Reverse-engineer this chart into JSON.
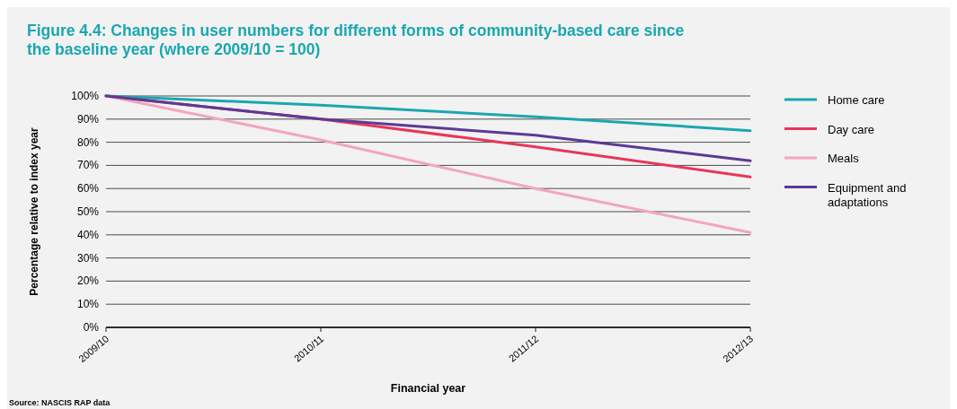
{
  "chart_data": {
    "type": "line",
    "title": "Figure 4.4: Changes in user numbers for different forms of community-based care since the baseline year (where 2009/10 = 100)",
    "xlabel": "Financial year",
    "ylabel": "Percentage relative to index year",
    "categories": [
      "2009/10",
      "2010/11",
      "2011/12",
      "2012/13"
    ],
    "series": [
      {
        "name": "Home care",
        "color": "#1aa7b0",
        "values": [
          100,
          96,
          91,
          85
        ]
      },
      {
        "name": "Day care",
        "color": "#e8365a",
        "values": [
          100,
          90,
          78,
          65
        ]
      },
      {
        "name": "Meals",
        "color": "#f4a6b9",
        "values": [
          100,
          81,
          60,
          41
        ]
      },
      {
        "name": "Equipment and adaptations",
        "color": "#5b3a96",
        "values": [
          100,
          90,
          83,
          72
        ]
      }
    ],
    "ylim": [
      0,
      100
    ],
    "yticks": [
      {
        "value": 0,
        "label": "0%"
      },
      {
        "value": 10,
        "label": "10%"
      },
      {
        "value": 20,
        "label": "20%"
      },
      {
        "value": 30,
        "label": "30%"
      },
      {
        "value": 40,
        "label": "40%"
      },
      {
        "value": 50,
        "label": "50%"
      },
      {
        "value": 60,
        "label": "60%"
      },
      {
        "value": 70,
        "label": "70%"
      },
      {
        "value": 80,
        "label": "80%"
      },
      {
        "value": 90,
        "label": "90%"
      },
      {
        "value": 100,
        "label": "100%"
      }
    ],
    "grid": "y",
    "legend": "right",
    "marker": "none",
    "line_style": "solid",
    "annotations": [
      "Source: NASCIS RAP data"
    ]
  }
}
